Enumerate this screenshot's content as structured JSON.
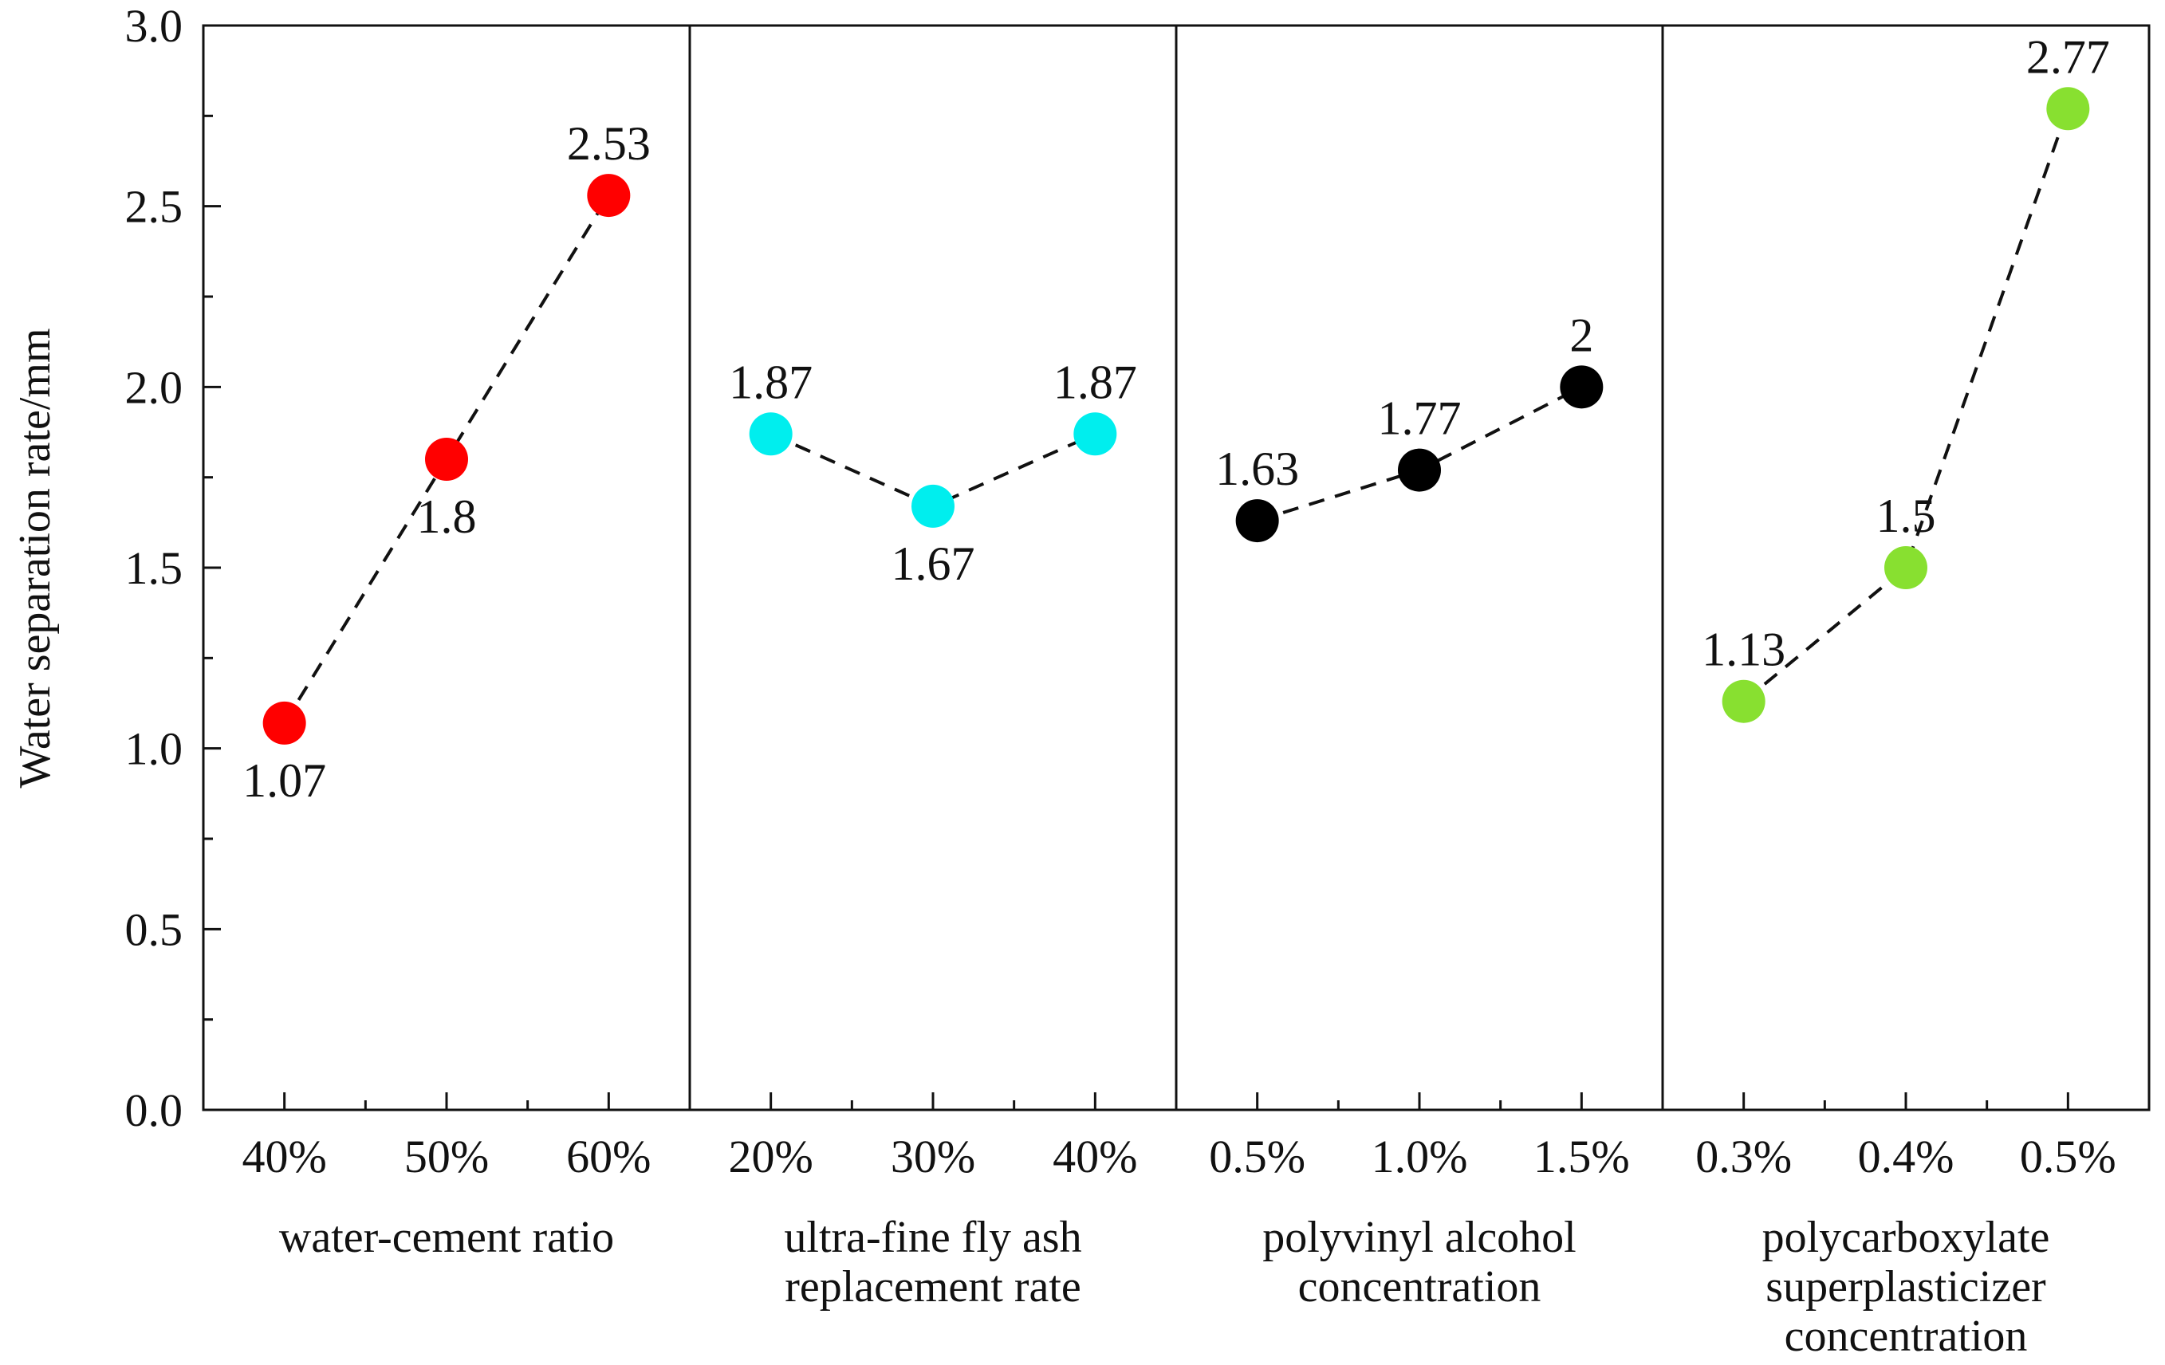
{
  "chart_data": {
    "type": "scatter",
    "title": "",
    "ylabel": "Water separation rate/mm",
    "ylim": [
      0,
      3.0
    ],
    "yticks": [
      "0.0",
      "0.5",
      "1.0",
      "1.5",
      "2.0",
      "2.5",
      "3.0"
    ],
    "ytick_values": [
      0,
      0.5,
      1.0,
      1.5,
      2.0,
      2.5,
      3.0
    ],
    "connector": "dashed",
    "groups": [
      {
        "name": "water-cement ratio",
        "label_lines": [
          "water-cement ratio"
        ],
        "categories": [
          "40%",
          "50%",
          "60%"
        ],
        "values": [
          1.07,
          1.8,
          2.53
        ],
        "value_labels": [
          "1.07",
          "1.8",
          "2.53"
        ],
        "label_positions": [
          "below",
          "below",
          "above"
        ],
        "color": "#ff0000"
      },
      {
        "name": "ultra-fine fly ash replacement rate",
        "label_lines": [
          "ultra-fine fly ash",
          "replacement rate"
        ],
        "categories": [
          "20%",
          "30%",
          "40%"
        ],
        "values": [
          1.87,
          1.67,
          1.87
        ],
        "value_labels": [
          "1.87",
          "1.67",
          "1.87"
        ],
        "label_positions": [
          "above",
          "below",
          "above"
        ],
        "color": "#00eeee"
      },
      {
        "name": "polyvinyl alcohol concentration",
        "label_lines": [
          "polyvinyl  alcohol",
          "concentration"
        ],
        "categories": [
          "0.5%",
          "1.0%",
          "1.5%"
        ],
        "values": [
          1.63,
          1.77,
          2.0
        ],
        "value_labels": [
          "1.63",
          "1.77",
          "2"
        ],
        "label_positions": [
          "above",
          "above",
          "above"
        ],
        "color": "#000000"
      },
      {
        "name": "polycarboxylate superplasticizer concentration",
        "label_lines": [
          "polycarboxylate",
          "superplasticizer",
          "concentration"
        ],
        "categories": [
          "0.3%",
          "0.4%",
          "0.5%"
        ],
        "values": [
          1.13,
          1.5,
          2.77
        ],
        "value_labels": [
          "1.13",
          "1.5",
          "2.77"
        ],
        "label_positions": [
          "above",
          "above",
          "above"
        ],
        "color": "#88e030"
      }
    ]
  }
}
